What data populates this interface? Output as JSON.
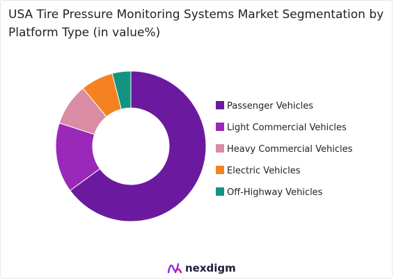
{
  "chart_data": {
    "type": "pie",
    "variant": "donut",
    "title": "USA Tire Pressure Monitoring Systems Market Segmentation by Platform Type (in value%)",
    "categories": [
      "Passenger Vehicles",
      "Light Commercial Vehicles",
      "Heavy Commercial Vehicles",
      "Electric Vehicles",
      "Off-Highway Vehicles"
    ],
    "values": [
      65,
      15,
      9,
      7,
      4
    ],
    "colors": [
      "#6b1aa0",
      "#9a28b8",
      "#d98ca3",
      "#f58220",
      "#129481"
    ],
    "legend_position": "right"
  },
  "brand": {
    "name": "nexdigm",
    "logo_icon": "nexdigm-logo-icon"
  }
}
